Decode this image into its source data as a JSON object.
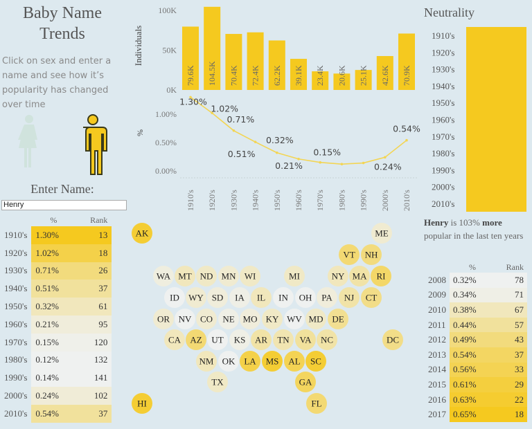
{
  "title_line1": "Baby Name",
  "title_line2": "Trends",
  "description": "Click on sex and enter a name and see how it’s popularity has changed over time",
  "sex_selector": {
    "female_icon": "female-figure-icon",
    "male_icon": "male-figure-icon",
    "selected": "male"
  },
  "enter_name_label": "Enter Name:",
  "name_value": "Henry",
  "colors": {
    "accent": "#f5c91f",
    "background": "#dde9ef",
    "light": "#f1ede0"
  },
  "decade_table": {
    "headers": [
      "",
      "%",
      "Rank"
    ],
    "rows": [
      {
        "decade": "1910's",
        "pct": "1.30%",
        "rank": "13",
        "level": 1.0
      },
      {
        "decade": "1920's",
        "pct": "1.02%",
        "rank": "18",
        "level": 0.8
      },
      {
        "decade": "1930's",
        "pct": "0.71%",
        "rank": "26",
        "level": 0.55
      },
      {
        "decade": "1940's",
        "pct": "0.51%",
        "rank": "37",
        "level": 0.4
      },
      {
        "decade": "1950's",
        "pct": "0.32%",
        "rank": "61",
        "level": 0.25
      },
      {
        "decade": "1960's",
        "pct": "0.21%",
        "rank": "95",
        "level": 0.1
      },
      {
        "decade": "1970's",
        "pct": "0.15%",
        "rank": "120",
        "level": 0.03
      },
      {
        "decade": "1980's",
        "pct": "0.12%",
        "rank": "132",
        "level": 0.0
      },
      {
        "decade": "1990's",
        "pct": "0.14%",
        "rank": "141",
        "level": 0.0
      },
      {
        "decade": "2000's",
        "pct": "0.24%",
        "rank": "102",
        "level": 0.12
      },
      {
        "decade": "2010's",
        "pct": "0.54%",
        "rank": "37",
        "level": 0.4
      }
    ]
  },
  "chart_data": [
    {
      "type": "bar",
      "categories": [
        "1910's",
        "1920's",
        "1930's",
        "1940's",
        "1950's",
        "1960's",
        "1970's",
        "1980's",
        "1990's",
        "2000's",
        "2010's"
      ],
      "values": [
        79.6,
        104.5,
        70.4,
        72.4,
        62.2,
        39.1,
        23.4,
        20.6,
        25.1,
        42.6,
        70.9
      ],
      "data_labels": [
        "79.6K",
        "104.5K",
        "70.4K",
        "72.4K",
        "62.2K",
        "39.1K",
        "23.4K",
        "20.6K",
        "25.1K",
        "42.6K",
        "70.9K"
      ],
      "ylabel": "Individuals",
      "yticks": [
        "0K",
        "50K",
        "100K"
      ],
      "ylim": [
        0,
        105
      ]
    },
    {
      "type": "line",
      "categories": [
        "1910's",
        "1920's",
        "1930's",
        "1940's",
        "1950's",
        "1960's",
        "1970's",
        "1980's",
        "1990's",
        "2000's",
        "2010's"
      ],
      "values": [
        1.3,
        1.02,
        0.71,
        0.51,
        0.32,
        0.21,
        0.15,
        0.12,
        0.14,
        0.24,
        0.54
      ],
      "data_labels": [
        "1.30%",
        "1.02%",
        "0.71%",
        "0.51%",
        "0.32%",
        "0.21%",
        "0.15%",
        "",
        "",
        "0.24%",
        "0.54%"
      ],
      "ylabel": "%",
      "yticks": [
        "0.00%",
        "0.50%",
        "1.00%"
      ],
      "ylim": [
        0,
        1.3
      ]
    },
    {
      "type": "bar",
      "title": "Neutrality",
      "orientation": "horizontal",
      "categories": [
        "1910's",
        "1920's",
        "1930's",
        "1940's",
        "1950's",
        "1960's",
        "1970's",
        "1980's",
        "1990's",
        "2000's",
        "2010's"
      ],
      "values": [
        1,
        1,
        1,
        1,
        1,
        1,
        1,
        1,
        1,
        1,
        1
      ]
    }
  ],
  "state_map": [
    {
      "s": "AK",
      "l": 0.9
    },
    {
      "s": "ME",
      "l": 0.15
    },
    {
      "s": "VT",
      "l": 0.6
    },
    {
      "s": "NH",
      "l": 0.55
    },
    {
      "s": "WA",
      "l": 0.08
    },
    {
      "s": "MT",
      "l": 0.25
    },
    {
      "s": "ND",
      "l": 0.2
    },
    {
      "s": "MN",
      "l": 0.15
    },
    {
      "s": "WI",
      "l": 0.2
    },
    {
      "s": "MI",
      "l": 0.2
    },
    {
      "s": "NY",
      "l": 0.25
    },
    {
      "s": "MA",
      "l": 0.35
    },
    {
      "s": "RI",
      "l": 0.65
    },
    {
      "s": "ID",
      "l": 0.0
    },
    {
      "s": "WY",
      "l": 0.15
    },
    {
      "s": "SD",
      "l": 0.1
    },
    {
      "s": "IA",
      "l": 0.05
    },
    {
      "s": "IL",
      "l": 0.25
    },
    {
      "s": "IN",
      "l": 0.0
    },
    {
      "s": "OH",
      "l": 0.0
    },
    {
      "s": "PA",
      "l": 0.1
    },
    {
      "s": "NJ",
      "l": 0.35
    },
    {
      "s": "CT",
      "l": 0.5
    },
    {
      "s": "OR",
      "l": 0.15
    },
    {
      "s": "NV",
      "l": 0.0
    },
    {
      "s": "CO",
      "l": 0.15
    },
    {
      "s": "NE",
      "l": 0.05
    },
    {
      "s": "MO",
      "l": 0.1
    },
    {
      "s": "KY",
      "l": 0.2
    },
    {
      "s": "WV",
      "l": 0.0
    },
    {
      "s": "MD",
      "l": 0.2
    },
    {
      "s": "DE",
      "l": 0.45
    },
    {
      "s": "CA",
      "l": 0.25
    },
    {
      "s": "AZ",
      "l": 0.6
    },
    {
      "s": "UT",
      "l": 0.0
    },
    {
      "s": "KS",
      "l": 0.05
    },
    {
      "s": "AR",
      "l": 0.35
    },
    {
      "s": "TN",
      "l": 0.3
    },
    {
      "s": "VA",
      "l": 0.4
    },
    {
      "s": "NC",
      "l": 0.35
    },
    {
      "s": "DC",
      "l": 0.5
    },
    {
      "s": "NM",
      "l": 0.25
    },
    {
      "s": "OK",
      "l": 0.0
    },
    {
      "s": "LA",
      "l": 0.8
    },
    {
      "s": "MS",
      "l": 0.9
    },
    {
      "s": "AL",
      "l": 0.75
    },
    {
      "s": "SC",
      "l": 0.9
    },
    {
      "s": "TX",
      "l": 0.2
    },
    {
      "s": "GA",
      "l": 0.7
    },
    {
      "s": "HI",
      "l": 0.9
    },
    {
      "s": "FL",
      "l": 0.6
    }
  ],
  "neutrality_title": "Neutrality",
  "note": {
    "name": "Henry",
    "text1": " is 103% ",
    "bold2": "more",
    "text2": " popular in the last ten years"
  },
  "year_table": {
    "headers": [
      "",
      "%",
      "Rank"
    ],
    "rows": [
      {
        "year": "2008",
        "pct": "0.32%",
        "rank": "78",
        "level": 0.0
      },
      {
        "year": "2009",
        "pct": "0.34%",
        "rank": "71",
        "level": 0.05
      },
      {
        "year": "2010",
        "pct": "0.38%",
        "rank": "67",
        "level": 0.25
      },
      {
        "year": "2011",
        "pct": "0.44%",
        "rank": "57",
        "level": 0.4
      },
      {
        "year": "2012",
        "pct": "0.49%",
        "rank": "43",
        "level": 0.55
      },
      {
        "year": "2013",
        "pct": "0.54%",
        "rank": "37",
        "level": 0.68
      },
      {
        "year": "2014",
        "pct": "0.56%",
        "rank": "33",
        "level": 0.75
      },
      {
        "year": "2015",
        "pct": "0.61%",
        "rank": "29",
        "level": 0.85
      },
      {
        "year": "2016",
        "pct": "0.63%",
        "rank": "22",
        "level": 0.92
      },
      {
        "year": "2017",
        "pct": "0.65%",
        "rank": "18",
        "level": 1.0
      }
    ]
  }
}
